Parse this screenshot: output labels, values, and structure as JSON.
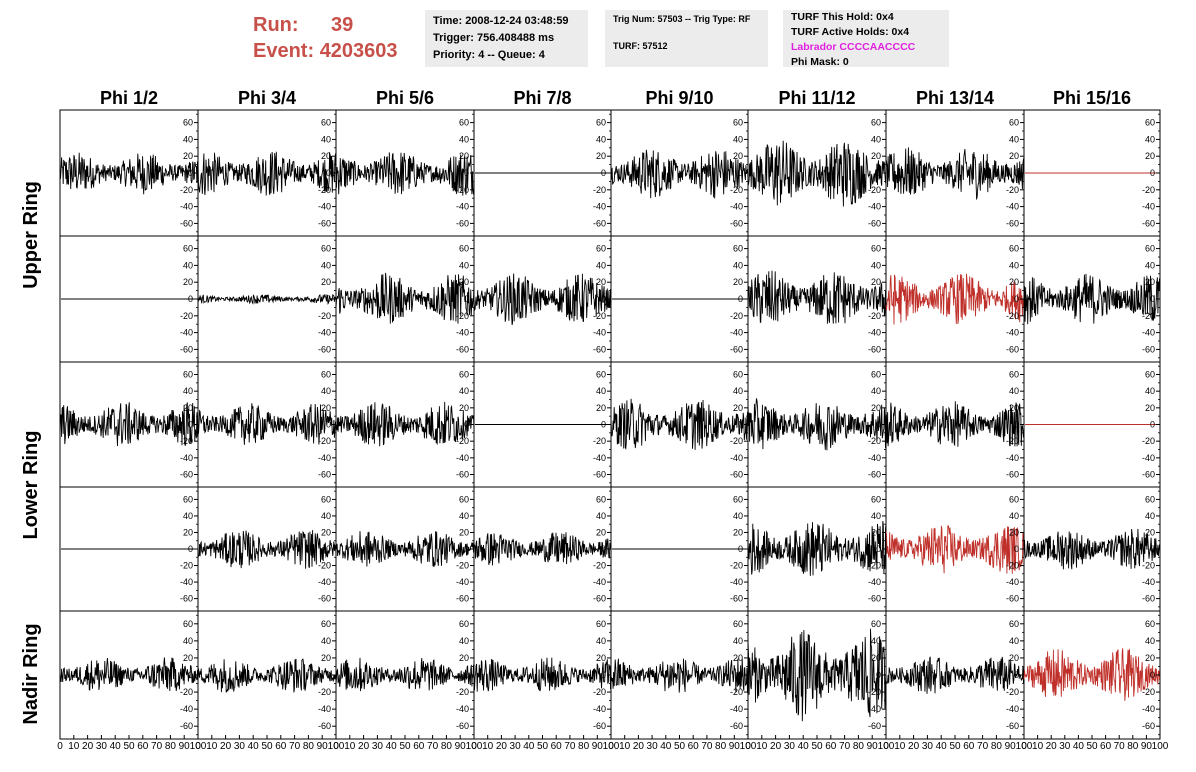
{
  "header": {
    "run_label": "Run:",
    "run_value": "39",
    "event_label": "Event:",
    "event_value": "4203603",
    "time": "Time: 2008-12-24 03:48:59",
    "trigger": "Trigger: 756.408488 ms",
    "priority_queue": "Priority: 4 -- Queue: 4",
    "trig_num_type": "Trig Num: 57503 -- Trig Type: RF",
    "turf": "TURF: 57512",
    "turf_this_hold": "TURF This Hold: 0x4",
    "turf_active_holds": "TURF Active Holds: 0x4",
    "labrador": "Labrador CCCCAACCCC",
    "phi_mask": "Phi Mask: 0"
  },
  "colors": {
    "header_red": "#c8504a",
    "labrador_magenta": "#e020e0",
    "trace_black": "#000000",
    "trace_red": "#c0302a",
    "info_box_bg": "#ececec"
  },
  "ring_labels": [
    {
      "name": "Upper Ring",
      "rows": [
        0,
        1
      ]
    },
    {
      "name": "Lower Ring",
      "rows": [
        2,
        3
      ]
    },
    {
      "name": "Nadir Ring",
      "rows": [
        4
      ]
    }
  ],
  "chart_data": {
    "type": "line",
    "layout": "grid of 5 rows x 8 columns of waveform panels",
    "column_titles": [
      "Phi 1/2",
      "Phi 3/4",
      "Phi 5/6",
      "Phi 7/8",
      "Phi 9/10",
      "Phi 11/12",
      "Phi 13/14",
      "Phi 15/16"
    ],
    "xlim": [
      0,
      100
    ],
    "x_ticks": [
      0,
      10,
      20,
      30,
      40,
      50,
      60,
      70,
      80,
      90,
      100
    ],
    "x_tick_labels": [
      "0",
      "10",
      "20",
      "30",
      "40",
      "50",
      "60",
      "70",
      "80",
      "90",
      "100"
    ],
    "ylim": [
      -75,
      75
    ],
    "y_ticks": [
      -60,
      -40,
      -20,
      0,
      20,
      40,
      60
    ],
    "y_tick_labels": [
      "-60",
      "-40",
      "-20",
      "0",
      "20",
      "40",
      "60"
    ],
    "y_ticks_nadir": [
      -60,
      -40,
      -20,
      0,
      20,
      40,
      60
    ],
    "y_tick_labels_nadir": [
      "-60",
      "-40",
      "-20",
      "0",
      "20",
      "40",
      "60"
    ],
    "panels": [
      [
        {
          "amplitude": 18,
          "color": "black",
          "flat": false
        },
        {
          "amplitude": 20,
          "color": "black",
          "flat": false
        },
        {
          "amplitude": 20,
          "color": "black",
          "flat": false
        },
        {
          "amplitude": 0,
          "color": "black",
          "flat": true
        },
        {
          "amplitude": 22,
          "color": "black",
          "flat": false
        },
        {
          "amplitude": 30,
          "color": "black",
          "flat": false
        },
        {
          "amplitude": 22,
          "color": "black",
          "flat": false
        },
        {
          "amplitude": 0,
          "color": "red",
          "flat": true
        }
      ],
      [
        {
          "amplitude": 0,
          "color": "black",
          "flat": true
        },
        {
          "amplitude": 4,
          "color": "black",
          "flat": false
        },
        {
          "amplitude": 22,
          "color": "black",
          "flat": false
        },
        {
          "amplitude": 22,
          "color": "black",
          "flat": false
        },
        {
          "amplitude": 0,
          "color": "black",
          "flat": true
        },
        {
          "amplitude": 25,
          "color": "black",
          "flat": false
        },
        {
          "amplitude": 22,
          "color": "red",
          "flat": false
        },
        {
          "amplitude": 22,
          "color": "black",
          "flat": false
        }
      ],
      [
        {
          "amplitude": 20,
          "color": "black",
          "flat": false
        },
        {
          "amplitude": 18,
          "color": "black",
          "flat": false
        },
        {
          "amplitude": 20,
          "color": "black",
          "flat": false
        },
        {
          "amplitude": 0,
          "color": "black",
          "flat": true
        },
        {
          "amplitude": 22,
          "color": "black",
          "flat": false
        },
        {
          "amplitude": 22,
          "color": "black",
          "flat": false
        },
        {
          "amplitude": 20,
          "color": "black",
          "flat": false
        },
        {
          "amplitude": 0,
          "color": "red",
          "flat": true
        }
      ],
      [
        {
          "amplitude": 0,
          "color": "black",
          "flat": true
        },
        {
          "amplitude": 17,
          "color": "black",
          "flat": false
        },
        {
          "amplitude": 16,
          "color": "black",
          "flat": false
        },
        {
          "amplitude": 15,
          "color": "black",
          "flat": false
        },
        {
          "amplitude": 0,
          "color": "black",
          "flat": true
        },
        {
          "amplitude": 25,
          "color": "black",
          "flat": false
        },
        {
          "amplitude": 22,
          "color": "red",
          "flat": false
        },
        {
          "amplitude": 18,
          "color": "black",
          "flat": false
        }
      ],
      [
        {
          "amplitude": 15,
          "color": "black",
          "flat": false
        },
        {
          "amplitude": 15,
          "color": "black",
          "flat": false
        },
        {
          "amplitude": 15,
          "color": "black",
          "flat": false
        },
        {
          "amplitude": 15,
          "color": "black",
          "flat": false
        },
        {
          "amplitude": 16,
          "color": "black",
          "flat": false
        },
        {
          "amplitude": 38,
          "color": "black",
          "flat": false
        },
        {
          "amplitude": 16,
          "color": "black",
          "flat": false
        },
        {
          "amplitude": 22,
          "color": "red",
          "flat": false
        }
      ]
    ]
  }
}
